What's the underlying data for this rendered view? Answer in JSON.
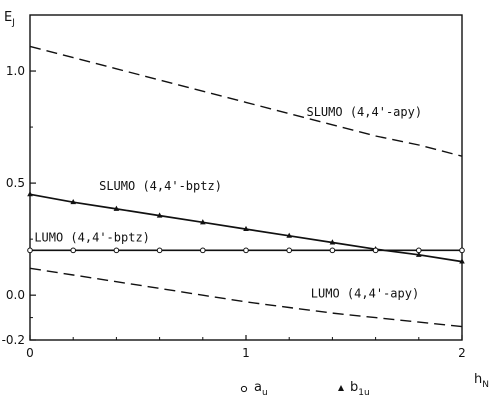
{
  "chart_data": {
    "type": "line",
    "xlabel": "h",
    "xlabel_sub": "N",
    "ylabel": "E",
    "ylabel_sub": "J",
    "xlim": [
      0,
      2
    ],
    "ylim": [
      -0.2,
      1.25
    ],
    "x_ticks": [
      {
        "value": 0,
        "label": "0"
      },
      {
        "value": 1,
        "label": "1"
      },
      {
        "value": 2,
        "label": "2"
      }
    ],
    "y_ticks": [
      {
        "value": 1.0,
        "label": "1.0"
      },
      {
        "value": 0.5,
        "label": "0.5"
      },
      {
        "value": 0.0,
        "label": "0.0"
      },
      {
        "value": -0.2,
        "label": "-0.2"
      }
    ],
    "grid": false,
    "series": [
      {
        "name": "SLUMO (4,4'-apy)",
        "style": "dashed",
        "x": [
          0,
          0.2,
          0.4,
          0.6,
          0.8,
          1.0,
          1.2,
          1.4,
          1.6,
          1.8,
          2.0
        ],
        "y": [
          1.11,
          1.06,
          1.01,
          0.96,
          0.91,
          0.86,
          0.81,
          0.76,
          0.71,
          0.67,
          0.62
        ]
      },
      {
        "name": "SLUMO (4,4'-bptz)",
        "style": "solid",
        "marker": "b1u",
        "x": [
          0,
          0.2,
          0.4,
          0.6,
          0.8,
          1.0,
          1.2,
          1.4,
          1.6,
          1.8,
          2.0
        ],
        "y": [
          0.45,
          0.415,
          0.385,
          0.355,
          0.325,
          0.295,
          0.265,
          0.235,
          0.205,
          0.18,
          0.15
        ]
      },
      {
        "name": "LUMO (4,4'-bptz)",
        "style": "solid",
        "marker": "au",
        "x": [
          0,
          0.2,
          0.4,
          0.6,
          0.8,
          1.0,
          1.2,
          1.4,
          1.6,
          1.8,
          2.0
        ],
        "y": [
          0.2,
          0.2,
          0.2,
          0.2,
          0.2,
          0.2,
          0.2,
          0.2,
          0.2,
          0.2,
          0.2
        ]
      },
      {
        "name": "LUMO (4,4'-apy)",
        "style": "dashed",
        "x": [
          0,
          0.2,
          0.4,
          0.6,
          0.8,
          1.0,
          1.2,
          1.4,
          1.6,
          1.8,
          2.0
        ],
        "y": [
          0.12,
          0.09,
          0.06,
          0.03,
          0.0,
          -0.03,
          -0.055,
          -0.08,
          -0.1,
          -0.12,
          -0.14
        ]
      }
    ],
    "annotations": [
      {
        "text": "SLUMO (4,4'-apy)",
        "x": 1.28,
        "y": 0.8
      },
      {
        "text": "SLUMO (4,4'-bptz)",
        "x": 0.32,
        "y": 0.47
      },
      {
        "text": "LUMO (4,4'-bptz)",
        "x": 0.02,
        "y": 0.24
      },
      {
        "text": "LUMO (4,4'-apy)",
        "x": 1.3,
        "y": -0.01
      }
    ],
    "legend": [
      {
        "marker": "circle",
        "label": "a",
        "sub": "u"
      },
      {
        "marker": "triangle",
        "label": "b",
        "sub": "1u"
      }
    ],
    "legend_position": "bottom"
  }
}
